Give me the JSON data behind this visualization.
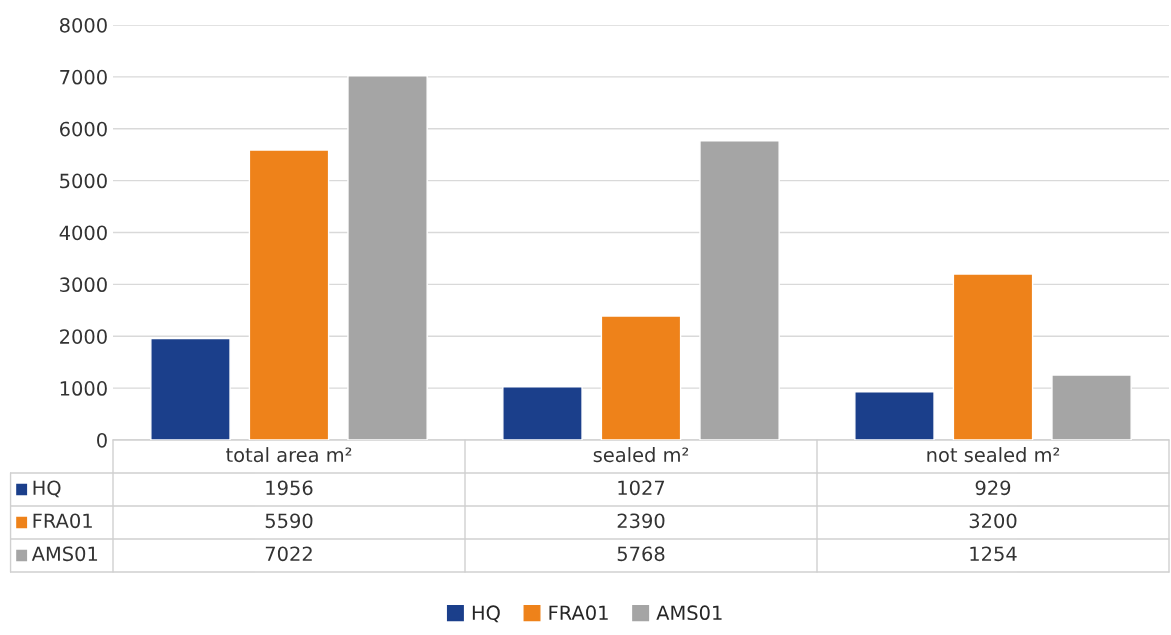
{
  "chart_data": {
    "type": "bar",
    "categories": [
      "total area m²",
      "sealed m²",
      "not sealed m²"
    ],
    "series": [
      {
        "name": "HQ",
        "color": "#1b3f8b",
        "values": [
          1956,
          1027,
          929
        ]
      },
      {
        "name": "FRA01",
        "color": "#ee821a",
        "values": [
          5590,
          2390,
          3200
        ]
      },
      {
        "name": "AMS01",
        "color": "#a5a5a5",
        "values": [
          7022,
          5768,
          1254
        ]
      }
    ],
    "ylim": [
      0,
      8000
    ],
    "yticks": [
      0,
      1000,
      2000,
      3000,
      4000,
      5000,
      6000,
      7000,
      8000
    ],
    "grid": "y",
    "legend": "bottom",
    "data_labels": true
  }
}
